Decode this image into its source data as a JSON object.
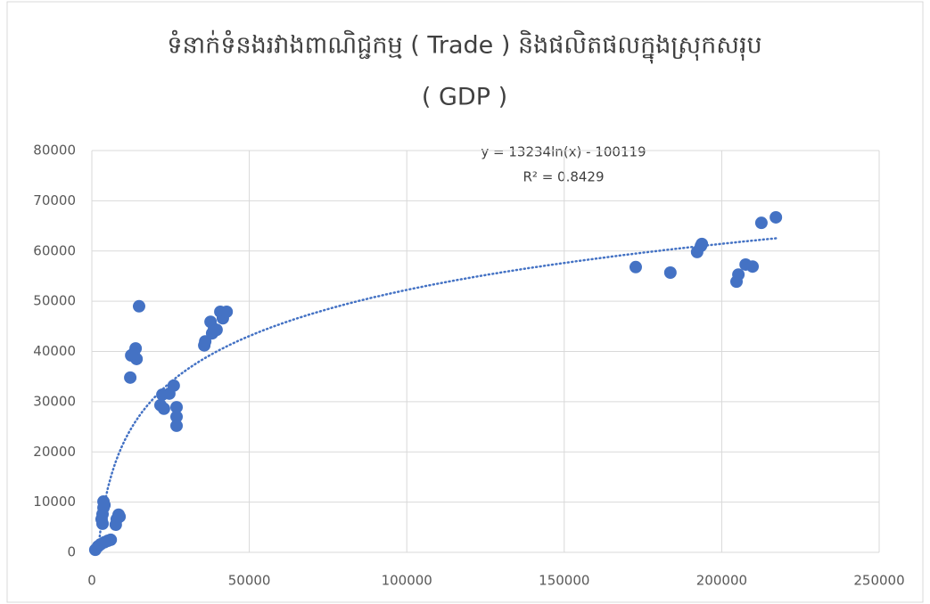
{
  "chart_data": {
    "type": "scatter",
    "title": "ទំនាក់ទំនងរវាងពាណិជ្ជកម្ម ( Trade ) និងផលិតផលក្នុងស្រុកសរុប",
    "subtitle": "( GDP )",
    "annotations": [
      "y = 13234ln(x) - 100119",
      "R² = 0.8429"
    ],
    "series": [
      {
        "name": "GDP",
        "color": "#4472c4",
        "x": [
          1100,
          2000,
          2800,
          4000,
          5100,
          6000,
          3400,
          3100,
          3400,
          3700,
          3700,
          4000,
          7600,
          7900,
          8500,
          8800,
          12200,
          12500,
          13900,
          14200,
          13300,
          15000,
          21800,
          22400,
          22900,
          24600,
          26000,
          26900,
          26900,
          26900,
          35700,
          36000,
          37700,
          38200,
          38800,
          39600,
          40800,
          41600,
          42800,
          172700,
          183700,
          192200,
          193400,
          193700,
          204700,
          205300,
          207600,
          209800,
          212600,
          217200
        ],
        "values": [
          500,
          1200,
          1600,
          2000,
          2300,
          2500,
          5700,
          6600,
          7600,
          8900,
          10100,
          9400,
          5500,
          6600,
          7500,
          7100,
          34800,
          39200,
          40600,
          38500,
          39600,
          49000,
          29300,
          31400,
          28600,
          31600,
          33200,
          28900,
          27000,
          25200,
          41200,
          42000,
          45900,
          43600,
          44500,
          44300,
          47900,
          46600,
          47900,
          56800,
          55700,
          59800,
          61000,
          61400,
          53900,
          55300,
          57300,
          56900,
          65600,
          66700
        ]
      }
    ],
    "xlim": [
      0,
      250000
    ],
    "xticks": [
      0,
      50000,
      100000,
      150000,
      200000,
      250000
    ],
    "ylim": [
      0,
      80000
    ],
    "yticks": [
      0,
      10000,
      20000,
      30000,
      40000,
      50000,
      60000,
      70000,
      80000
    ],
    "grid": true,
    "trendline": "logarithmic"
  }
}
